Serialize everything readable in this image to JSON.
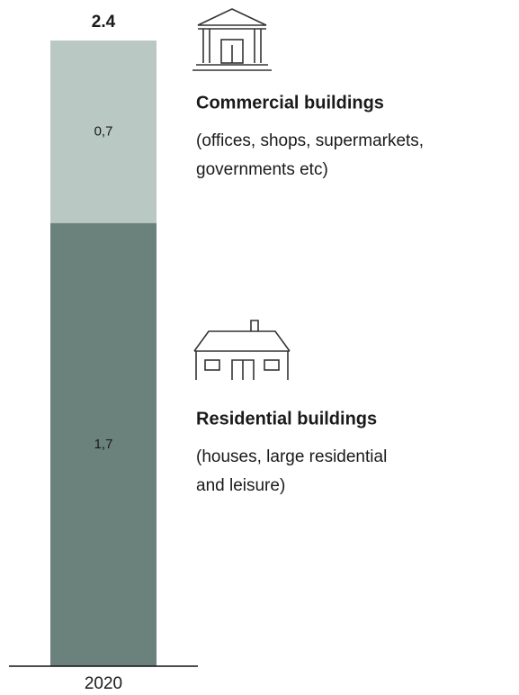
{
  "chart_data": {
    "type": "stacked-bar",
    "categories": [
      "2020"
    ],
    "total_labels": [
      "2.4"
    ],
    "ylim": [
      0,
      2.4
    ],
    "series": [
      {
        "name": "Residential buildings",
        "description": [
          "(houses, large residential",
          "and leisure)"
        ],
        "color": "#6a827b",
        "values": [
          1.7
        ],
        "value_labels": [
          "1,7"
        ]
      },
      {
        "name": "Commercial buildings",
        "description": [
          "(offices, shops, supermarkets,",
          "governments etc)"
        ],
        "color": "#b9c8c2",
        "values": [
          0.7
        ],
        "value_labels": [
          "0,7"
        ]
      }
    ]
  }
}
